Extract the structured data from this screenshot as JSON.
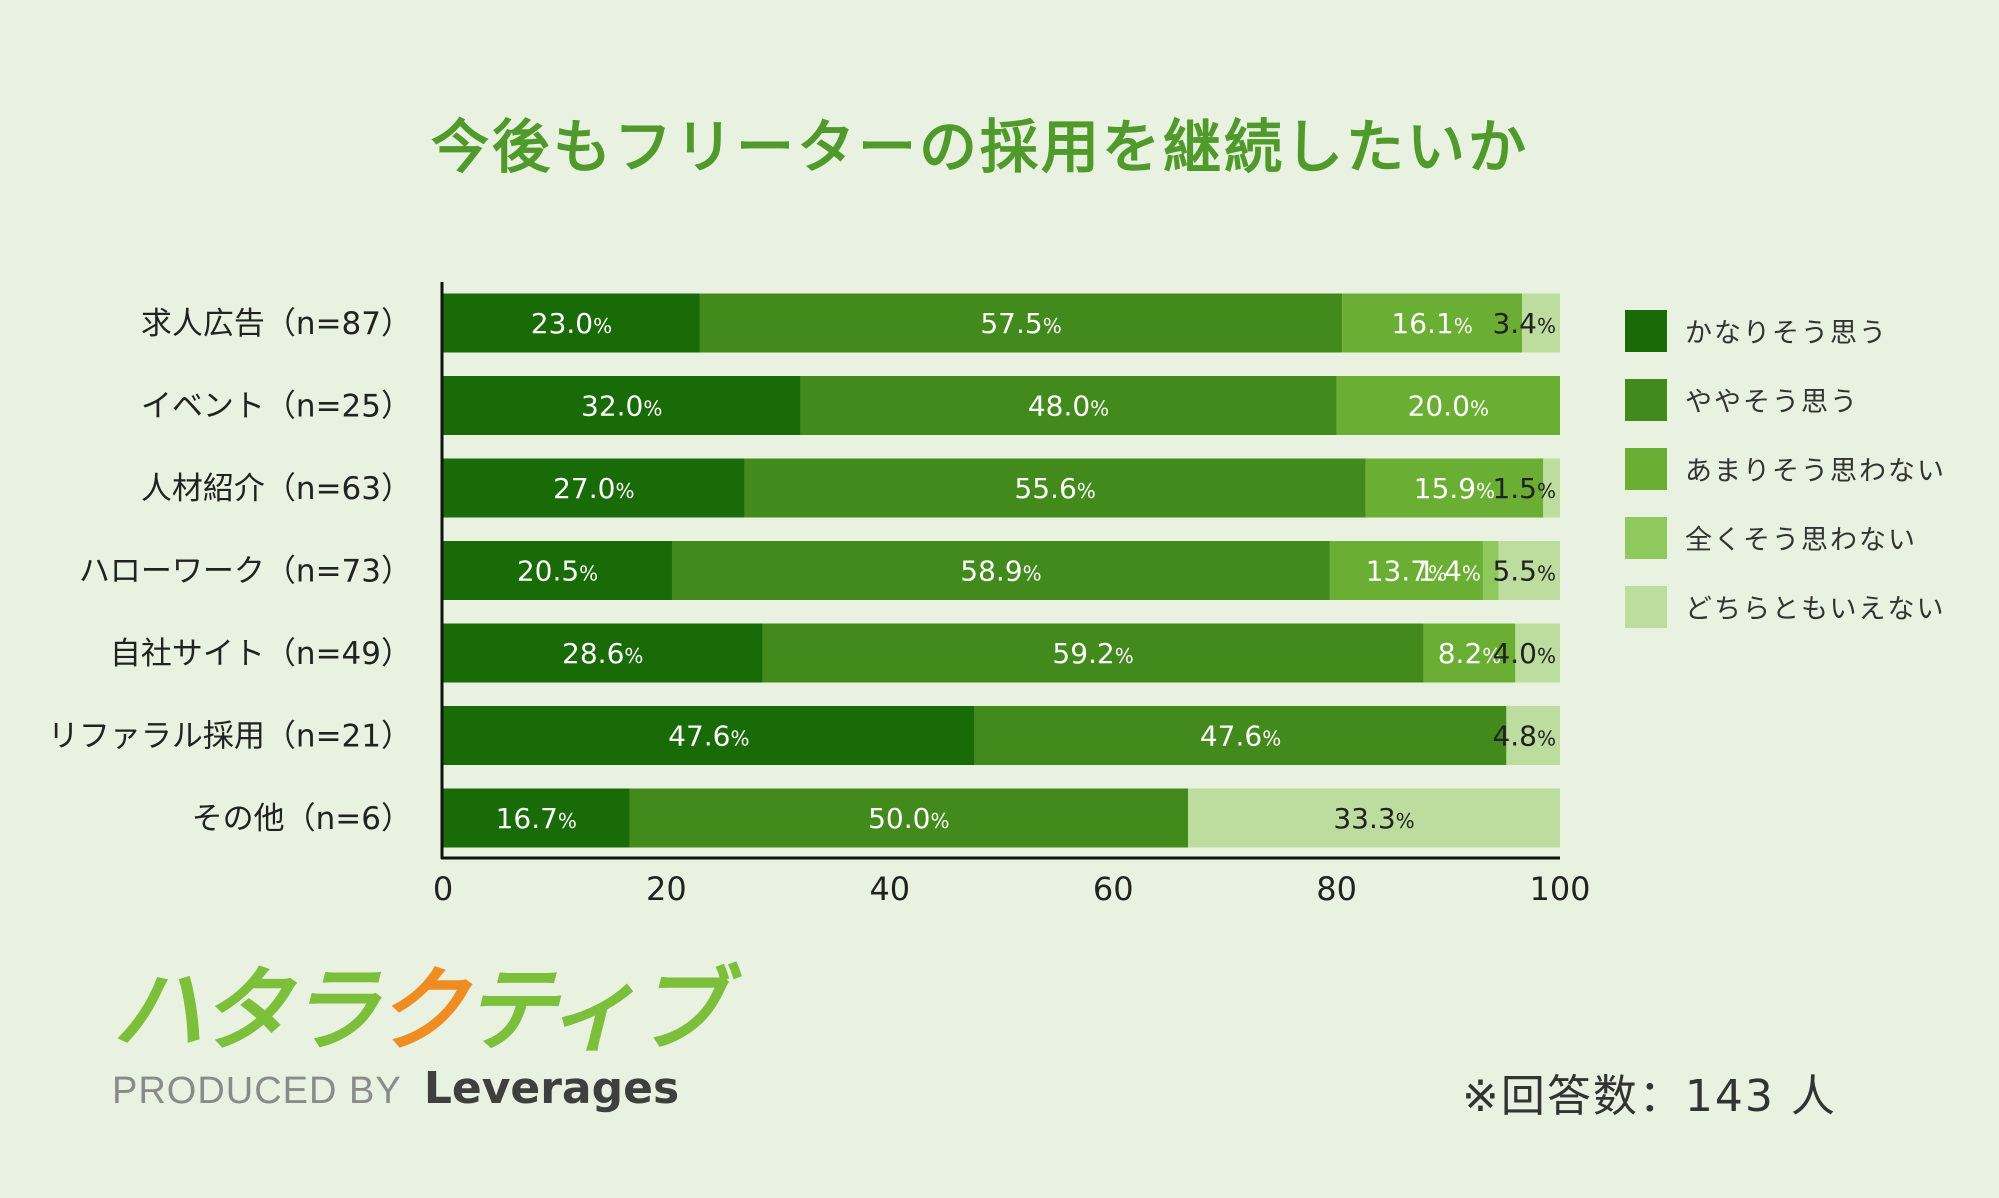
{
  "chart_data": {
    "type": "bar",
    "orientation": "horizontal-stacked-percent",
    "title": "今後もフリーターの採用を継続したいか",
    "categories": [
      "求人広告（n=87）",
      "イベント（n=25）",
      "人材紹介（n=63）",
      "ハローワーク（n=73）",
      "自社サイト（n=49）",
      "リファラル採用（n=21）",
      "その他（n=6）"
    ],
    "series": [
      {
        "name": "かなりそう思う",
        "color": "#186b06",
        "values": [
          23.0,
          32.0,
          27.0,
          20.5,
          28.6,
          47.6,
          16.7
        ]
      },
      {
        "name": "ややそう思う",
        "color": "#428a1c",
        "values": [
          57.5,
          48.0,
          55.6,
          58.9,
          59.2,
          47.6,
          50.0
        ]
      },
      {
        "name": "あまりそう思わない",
        "color": "#6aae33",
        "values": [
          16.1,
          20.0,
          15.9,
          13.7,
          8.2,
          0,
          0
        ]
      },
      {
        "name": "全くそう思わない",
        "color": "#8fc95e",
        "values": [
          0,
          0,
          0,
          1.4,
          0,
          0,
          0
        ]
      },
      {
        "name": "どちらともいえない",
        "color": "#bcdd9d",
        "values": [
          3.4,
          0,
          1.5,
          5.5,
          4.0,
          4.8,
          33.3
        ]
      }
    ],
    "data_labels": [
      [
        {
          "s": 0,
          "num": "23.0"
        },
        {
          "s": 1,
          "num": "57.5"
        },
        {
          "s": 2,
          "num": "16.1"
        },
        {
          "s": 4,
          "num": "3.4"
        }
      ],
      [
        {
          "s": 0,
          "num": "32.0"
        },
        {
          "s": 1,
          "num": "48.0"
        },
        {
          "s": 2,
          "num": "20.0"
        }
      ],
      [
        {
          "s": 0,
          "num": "27.0"
        },
        {
          "s": 1,
          "num": "55.6"
        },
        {
          "s": 2,
          "num": "15.9"
        },
        {
          "s": 4,
          "num": "1.5"
        }
      ],
      [
        {
          "s": 0,
          "num": "20.5"
        },
        {
          "s": 1,
          "num": "58.9"
        },
        {
          "s": 2,
          "num": "13.7"
        },
        {
          "s": 3,
          "num": "1.4"
        },
        {
          "s": 4,
          "num": "5.5"
        }
      ],
      [
        {
          "s": 0,
          "num": "28.6"
        },
        {
          "s": 1,
          "num": "59.2"
        },
        {
          "s": 2,
          "num": "8.2"
        },
        {
          "s": 4,
          "num": "4.0"
        }
      ],
      [
        {
          "s": 0,
          "num": "47.6"
        },
        {
          "s": 1,
          "num": "47.6"
        },
        {
          "s": 4,
          "num": "4.8"
        }
      ],
      [
        {
          "s": 0,
          "num": "16.7"
        },
        {
          "s": 1,
          "num": "50.0"
        },
        {
          "s": 4,
          "num": "33.3"
        }
      ]
    ],
    "percent_suffix": "%",
    "x_ticks": [
      "0",
      "20",
      "40",
      "60",
      "80",
      "100"
    ],
    "xlim": [
      0,
      100
    ],
    "legend_position": "right"
  },
  "footnote": "※回答数：143 人",
  "logo": {
    "ja_green_1": "ハタラ",
    "ja_orange": "ク",
    "ja_green_2": "ティブ",
    "produced_by": "PRODUCED BY",
    "brand": "Leverages"
  }
}
